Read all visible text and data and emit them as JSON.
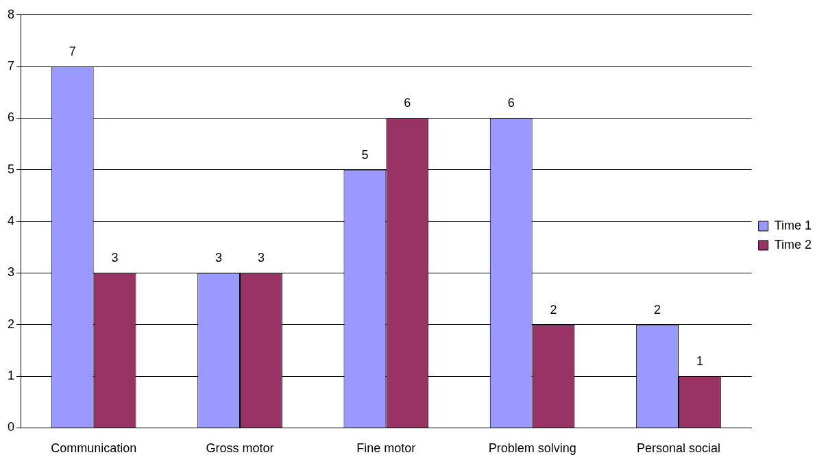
{
  "chart_data": {
    "type": "bar",
    "categories": [
      "Communication",
      "Gross motor",
      "Fine motor",
      "Problem solving",
      "Personal social"
    ],
    "series": [
      {
        "name": "Time 1",
        "color": "#9999ff",
        "values": [
          7,
          3,
          5,
          6,
          2
        ]
      },
      {
        "name": "Time 2",
        "color": "#993366",
        "values": [
          3,
          3,
          6,
          2,
          1
        ]
      }
    ],
    "ylim": [
      0,
      8
    ],
    "yticks": [
      0,
      1,
      2,
      3,
      4,
      5,
      6,
      7,
      8
    ],
    "grid": "y",
    "legend": "right",
    "data_labels": true
  }
}
